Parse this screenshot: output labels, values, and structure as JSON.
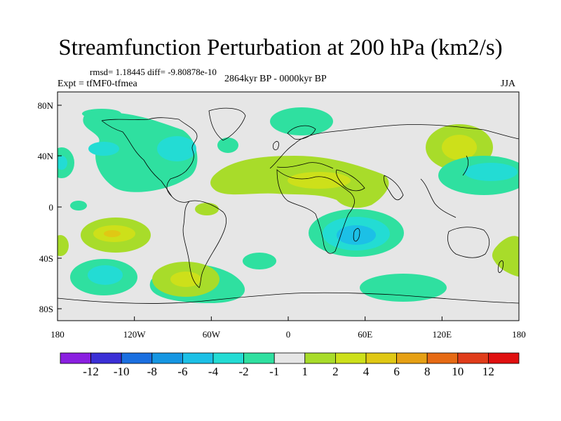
{
  "title": "Streamfunction Perturbation at 200 hPa (km2/s)",
  "stats": "rmsd= 1.18445 diff= -9.80878e-10",
  "experiment": "Expt = tfMF0-tfmea",
  "period": "2864kyr BP - 0000kyr BP",
  "season": "JJA",
  "lat_ticks": [
    "80N",
    "40N",
    "0",
    "40S",
    "80S"
  ],
  "lon_ticks": [
    "180",
    "120W",
    "60W",
    "0",
    "60E",
    "120E",
    "180"
  ],
  "colorbar": {
    "labels": [
      "-12",
      "-10",
      "-8",
      "-6",
      "-4",
      "-2",
      "-1",
      "1",
      "2",
      "4",
      "6",
      "8",
      "10",
      "12"
    ],
    "colors": [
      "#8a1fe0",
      "#3b2fd6",
      "#1a6fe0",
      "#1596e2",
      "#1cc0e6",
      "#23dcd4",
      "#2fe0a0",
      "#e6e6e6",
      "#a8dc2a",
      "#cde01a",
      "#e0c814",
      "#e6a014",
      "#e66a14",
      "#e03c1a",
      "#e01010"
    ]
  },
  "field_colors": {
    "neutral": "#e6e6e6",
    "neg1": "#2fe0a0",
    "neg2": "#23dcd4",
    "neg3": "#1cc0e6",
    "pos1": "#a8dc2a",
    "pos2": "#cde01a",
    "pos3": "#e0c814",
    "pos4": "#e6a014"
  }
}
